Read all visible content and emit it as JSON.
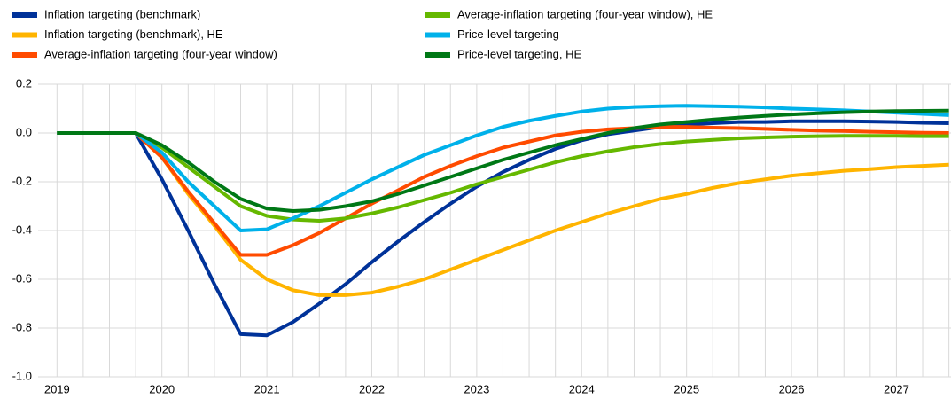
{
  "chart_data": {
    "type": "line",
    "x": [
      2019,
      2019.25,
      2019.5,
      2019.75,
      2020,
      2020.25,
      2020.5,
      2020.75,
      2021,
      2021.25,
      2021.5,
      2021.75,
      2022,
      2022.25,
      2022.5,
      2022.75,
      2023,
      2023.25,
      2023.5,
      2023.75,
      2024,
      2024.25,
      2024.5,
      2024.75,
      2025,
      2025.25,
      2025.5,
      2025.75,
      2026,
      2026.25,
      2026.5,
      2026.75,
      2027,
      2027.25,
      2027.5
    ],
    "series": [
      {
        "name": "Inflation targeting (benchmark)",
        "color": "#003299",
        "values": [
          0,
          0,
          0,
          0,
          -0.19,
          -0.4,
          -0.62,
          -0.825,
          -0.83,
          -0.775,
          -0.7,
          -0.62,
          -0.53,
          -0.445,
          -0.365,
          -0.29,
          -0.22,
          -0.16,
          -0.11,
          -0.065,
          -0.03,
          -0.005,
          0.01,
          0.025,
          0.035,
          0.04,
          0.045,
          0.045,
          0.048,
          0.048,
          0.048,
          0.047,
          0.045,
          0.042,
          0.04
        ]
      },
      {
        "name": "Inflation targeting (benchmark), HE",
        "color": "#ffb400",
        "values": [
          0,
          0,
          0,
          0,
          -0.1,
          -0.25,
          -0.38,
          -0.52,
          -0.6,
          -0.645,
          -0.665,
          -0.665,
          -0.655,
          -0.63,
          -0.6,
          -0.56,
          -0.52,
          -0.48,
          -0.44,
          -0.4,
          -0.365,
          -0.33,
          -0.3,
          -0.27,
          -0.25,
          -0.225,
          -0.205,
          -0.19,
          -0.175,
          -0.165,
          -0.155,
          -0.148,
          -0.14,
          -0.135,
          -0.13
        ]
      },
      {
        "name": "Average-inflation targeting (four-year window)",
        "color": "#ff4b00",
        "values": [
          0,
          0,
          0,
          0,
          -0.1,
          -0.24,
          -0.37,
          -0.5,
          -0.5,
          -0.46,
          -0.41,
          -0.35,
          -0.29,
          -0.235,
          -0.18,
          -0.135,
          -0.095,
          -0.06,
          -0.035,
          -0.01,
          0.005,
          0.015,
          0.02,
          0.025,
          0.025,
          0.022,
          0.02,
          0.017,
          0.013,
          0.01,
          0.008,
          0.005,
          0.003,
          0.001,
          0
        ]
      },
      {
        "name": "Average-inflation targeting (four-year window), HE",
        "color": "#65b800",
        "values": [
          0,
          0,
          0,
          0,
          -0.06,
          -0.14,
          -0.22,
          -0.3,
          -0.34,
          -0.355,
          -0.36,
          -0.35,
          -0.33,
          -0.305,
          -0.275,
          -0.245,
          -0.21,
          -0.18,
          -0.15,
          -0.12,
          -0.095,
          -0.075,
          -0.058,
          -0.045,
          -0.035,
          -0.028,
          -0.022,
          -0.018,
          -0.015,
          -0.013,
          -0.012,
          -0.012,
          -0.012,
          -0.013,
          -0.013
        ]
      },
      {
        "name": "Price-level targeting",
        "color": "#00b1ea",
        "values": [
          0,
          0,
          0,
          0,
          -0.08,
          -0.2,
          -0.3,
          -0.4,
          -0.395,
          -0.35,
          -0.3,
          -0.245,
          -0.19,
          -0.14,
          -0.09,
          -0.05,
          -0.01,
          0.025,
          0.05,
          0.07,
          0.088,
          0.1,
          0.107,
          0.11,
          0.112,
          0.11,
          0.108,
          0.105,
          0.1,
          0.097,
          0.093,
          0.088,
          0.083,
          0.078,
          0.073
        ]
      },
      {
        "name": "Price-level targeting, HE",
        "color": "#007816",
        "values": [
          0,
          0,
          0,
          0,
          -0.05,
          -0.12,
          -0.2,
          -0.27,
          -0.31,
          -0.32,
          -0.315,
          -0.3,
          -0.28,
          -0.25,
          -0.215,
          -0.18,
          -0.145,
          -0.11,
          -0.08,
          -0.05,
          -0.025,
          0,
          0.02,
          0.035,
          0.045,
          0.055,
          0.063,
          0.07,
          0.076,
          0.081,
          0.085,
          0.088,
          0.09,
          0.091,
          0.092
        ]
      }
    ],
    "xlim": [
      2018.82,
      2027.52
    ],
    "xticks": [
      2019,
      2020,
      2021,
      2022,
      2023,
      2024,
      2025,
      2026,
      2027
    ],
    "ylim": [
      -1.0,
      0.2
    ],
    "yticks": [
      0.2,
      {
        "value": 0.0,
        "label": "0.0"
      },
      -0.2,
      -0.4,
      -0.6,
      -0.8,
      {
        "value": -1.0,
        "label": "-1.0"
      }
    ],
    "grid": true
  }
}
